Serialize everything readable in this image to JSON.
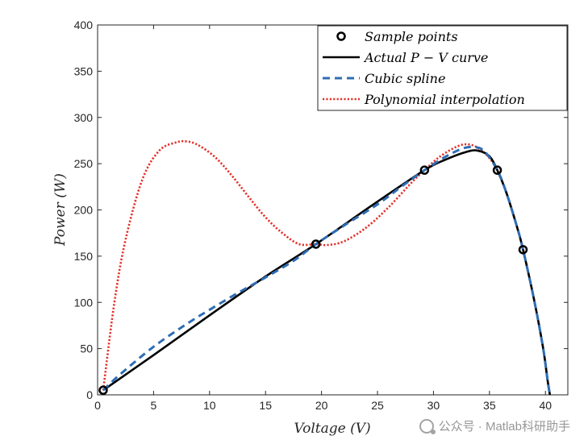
{
  "chart_data": {
    "type": "line",
    "xlabel": "Voltage (V)",
    "ylabel": "Power (W)",
    "xlim": [
      0,
      42
    ],
    "ylim": [
      0,
      400
    ],
    "xticks": [
      0,
      5,
      10,
      15,
      20,
      25,
      30,
      35,
      40
    ],
    "yticks": [
      0,
      50,
      100,
      150,
      200,
      250,
      300,
      350,
      400
    ],
    "legend_position": "top-right",
    "series": [
      {
        "name": "Actual P-V curve",
        "legend_label": "Actual P − V curve",
        "style": "solid",
        "color": "#000000",
        "x": [
          0.5,
          5,
          10,
          15,
          19.5,
          25,
          29.2,
          31,
          33,
          34,
          35,
          35.7,
          36.5,
          37.5,
          38,
          39,
          39.8,
          40.2,
          40.4
        ],
        "y": [
          5,
          43,
          86,
          128,
          163,
          209,
          243,
          254,
          263,
          264,
          258,
          243,
          219,
          180,
          157,
          102,
          50,
          15,
          0
        ]
      },
      {
        "name": "Cubic spline",
        "legend_label": "Cubic spline",
        "style": "dashed",
        "color": "#2e6db4",
        "x": [
          0.5,
          2,
          5,
          8,
          10,
          12.5,
          15,
          17.5,
          19.5,
          22,
          25,
          27,
          29.2,
          31,
          32.5,
          33.5,
          34.5,
          35.7,
          36.5,
          37.5,
          38,
          39,
          39.8,
          40.2,
          40.4
        ],
        "y": [
          5,
          22,
          52,
          77,
          92,
          110,
          127,
          145,
          163,
          183,
          206,
          224,
          243,
          257,
          266,
          268,
          264,
          243,
          219,
          180,
          157,
          102,
          50,
          15,
          0
        ]
      },
      {
        "name": "Polynomial interpolation",
        "legend_label": "Polynomial interpolation",
        "style": "dotted",
        "color": "#e3312a",
        "x": [
          0.5,
          1.5,
          2.5,
          4,
          5.5,
          7,
          8,
          9,
          10.5,
          12,
          13.5,
          15,
          16.5,
          18,
          19.5,
          20.5,
          22,
          24,
          26,
          28,
          29.2,
          30.5,
          32,
          33,
          34,
          35,
          35.7,
          36.5,
          37.5,
          38,
          39,
          39.8,
          40.2,
          40.4
        ],
        "y": [
          5,
          100,
          168,
          233,
          264,
          273,
          274,
          270,
          257,
          237,
          214,
          192,
          175,
          163,
          163,
          162,
          166,
          181,
          203,
          229,
          243,
          257,
          268,
          271,
          267,
          256,
          243,
          219,
          180,
          157,
          102,
          50,
          15,
          0
        ]
      },
      {
        "name": "Sample points",
        "legend_label": "Sample points",
        "style": "markers",
        "color": "#000000",
        "x": [
          0.5,
          19.5,
          29.2,
          35.7,
          38
        ],
        "y": [
          5,
          163,
          243,
          243,
          157
        ]
      }
    ]
  },
  "watermark": {
    "text": "公众号 · Matlab科研助手"
  }
}
